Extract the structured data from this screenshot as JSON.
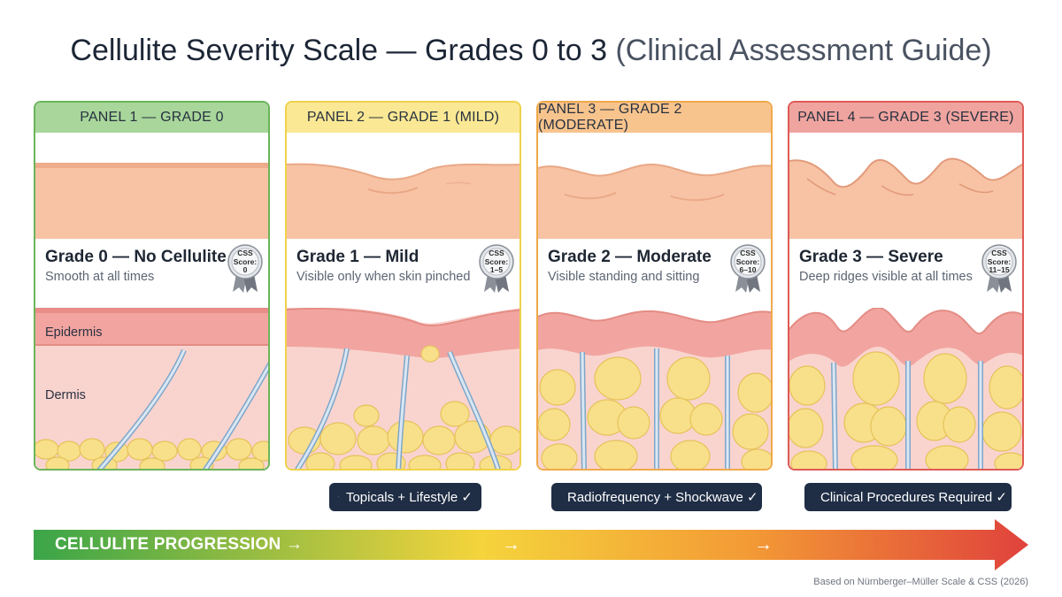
{
  "title": {
    "main": "Cellulite Severity Scale — Grades 0 to 3",
    "sub": "(Clinical Assessment Guide)"
  },
  "panels": [
    {
      "header": "PANEL 1 — GRADE 0",
      "grade_title": "Grade 0 — No Cellulite",
      "description": "Smooth at all times",
      "badge_line1": "CSS",
      "badge_line2": "Score:",
      "badge_score": "0",
      "layer_epidermis": "Epidermis",
      "layer_dermis": "Dermis",
      "border_color": "#6bb45a",
      "header_color": "#a9d69b"
    },
    {
      "header": "PANEL 2 — GRADE 1 (MILD)",
      "grade_title": "Grade 1 — Mild",
      "description": "Visible only when skin pinched",
      "badge_line1": "CSS",
      "badge_line2": "Score:",
      "badge_score": "1–5",
      "border_color": "#efd24a",
      "header_color": "#fae894"
    },
    {
      "header": "PANEL 3 — GRADE 2 (MODERATE)",
      "grade_title": "Grade 2 — Moderate",
      "description": "Visible standing and sitting",
      "badge_line1": "CSS",
      "badge_line2": "Score:",
      "badge_score": "6–10",
      "border_color": "#f0a94a",
      "header_color": "#f8c48d"
    },
    {
      "header": "PANEL 4 — GRADE 3 (SEVERE)",
      "grade_title": "Grade 3 — Severe",
      "description": "Deep ridges visible at all times",
      "badge_line1": "CSS",
      "badge_line2": "Score:",
      "badge_score": "11–15",
      "border_color": "#df5a55",
      "header_color": "#f0a49f"
    }
  ],
  "treatments": [
    {
      "label": "Topicals + Lifestyle ✓"
    },
    {
      "label": "Radiofrequency + Shockwave ✓"
    },
    {
      "label": "Clinical Procedures Required ✓"
    }
  ],
  "progression": {
    "label": "CELLULITE PROGRESSION →",
    "arrow": "→",
    "colors": [
      "#3aa548",
      "#f5d43c",
      "#f39a35",
      "#e0423c"
    ]
  },
  "footnote": "Based on Nürnberger–Müller Scale & CSS (2026)"
}
